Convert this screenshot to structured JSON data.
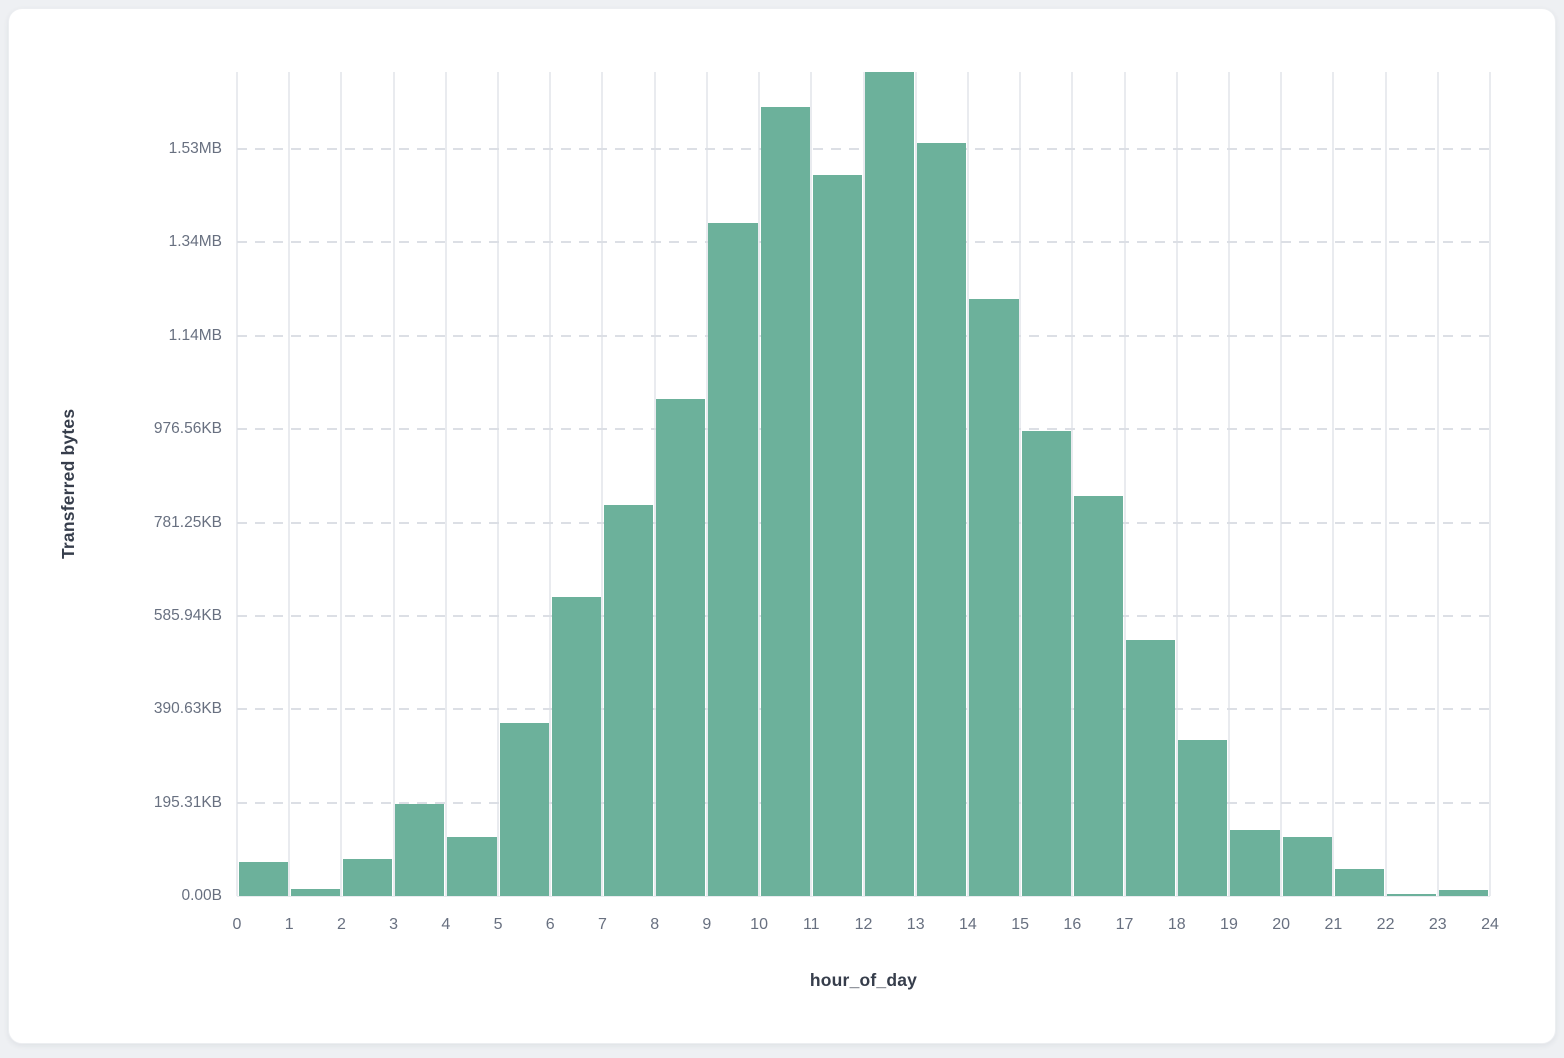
{
  "page": {
    "background_color": "#eef0f3",
    "card_background_color": "#ffffff"
  },
  "chart_data": {
    "type": "bar",
    "title": "",
    "xlabel": "hour_of_day",
    "ylabel": "Transferred bytes",
    "bar_color": "#6cb19b",
    "grid": {
      "vertical": "solid",
      "horizontal": "dashed",
      "legend": "none"
    },
    "xlim": [
      0,
      24
    ],
    "ylim_bytes": [
      0,
      1765000
    ],
    "categories": [
      0,
      1,
      2,
      3,
      4,
      5,
      6,
      7,
      8,
      9,
      10,
      11,
      12,
      13,
      14,
      15,
      16,
      17,
      18,
      19,
      20,
      21,
      22,
      23
    ],
    "values_bytes": [
      73000,
      15000,
      79000,
      197000,
      126000,
      370000,
      640000,
      838000,
      1065000,
      1442000,
      1690000,
      1544000,
      1765000,
      1613000,
      1279000,
      997000,
      856000,
      548000,
      334000,
      141000,
      126000,
      58000,
      4300,
      12800
    ],
    "x_ticks": [
      "0",
      "1",
      "2",
      "3",
      "4",
      "5",
      "6",
      "7",
      "8",
      "9",
      "10",
      "11",
      "12",
      "13",
      "14",
      "15",
      "16",
      "17",
      "18",
      "19",
      "20",
      "21",
      "22",
      "23",
      "24"
    ],
    "y_ticks": [
      {
        "value_bytes": 0,
        "label": "0.00B"
      },
      {
        "value_bytes": 200000,
        "label": "195.31KB"
      },
      {
        "value_bytes": 400000,
        "label": "390.63KB"
      },
      {
        "value_bytes": 600000,
        "label": "585.94KB"
      },
      {
        "value_bytes": 800000,
        "label": "781.25KB"
      },
      {
        "value_bytes": 1000000,
        "label": "976.56KB"
      },
      {
        "value_bytes": 1200000,
        "label": "1.14MB"
      },
      {
        "value_bytes": 1400000,
        "label": "1.34MB"
      },
      {
        "value_bytes": 1600000,
        "label": "1.53MB"
      }
    ]
  }
}
